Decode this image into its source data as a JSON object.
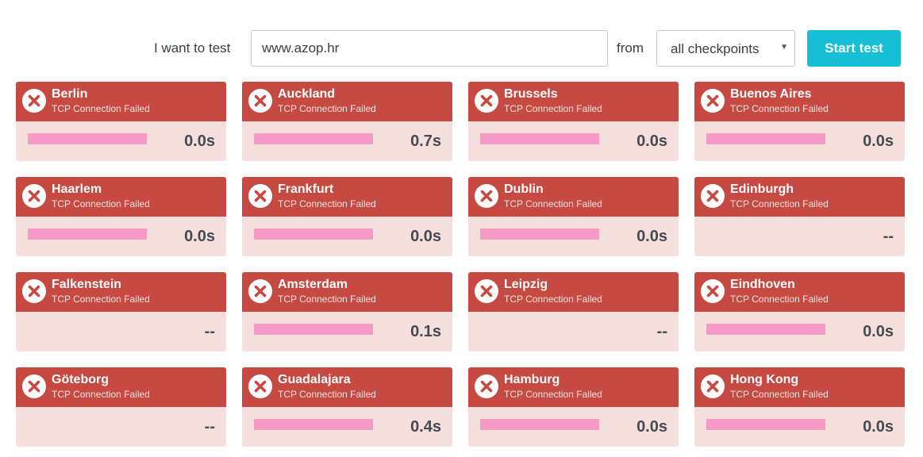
{
  "toolbar": {
    "test_label": "I want to test",
    "url_value": "www.azop.hr",
    "from_label": "from",
    "checkpoint_selected": "all checkpoints",
    "start_label": "Start test"
  },
  "colors": {
    "accent": "#16bfd6",
    "fail_header": "#c64a41",
    "fail_body": "#f5dfdd",
    "bar": "#f49ac4"
  },
  "icons": {
    "fail": "x-circle-icon",
    "dropdown": "caret-down-icon"
  },
  "results": [
    {
      "city": "Berlin",
      "status": "TCP Connection Failed",
      "time": "0.0s",
      "has_bar": true
    },
    {
      "city": "Auckland",
      "status": "TCP Connection Failed",
      "time": "0.7s",
      "has_bar": true
    },
    {
      "city": "Brussels",
      "status": "TCP Connection Failed",
      "time": "0.0s",
      "has_bar": true
    },
    {
      "city": "Buenos Aires",
      "status": "TCP Connection Failed",
      "time": "0.0s",
      "has_bar": true
    },
    {
      "city": "Haarlem",
      "status": "TCP Connection Failed",
      "time": "0.0s",
      "has_bar": true
    },
    {
      "city": "Frankfurt",
      "status": "TCP Connection Failed",
      "time": "0.0s",
      "has_bar": true
    },
    {
      "city": "Dublin",
      "status": "TCP Connection Failed",
      "time": "0.0s",
      "has_bar": true
    },
    {
      "city": "Edinburgh",
      "status": "TCP Connection Failed",
      "time": "--",
      "has_bar": false
    },
    {
      "city": "Falkenstein",
      "status": "TCP Connection Failed",
      "time": "--",
      "has_bar": false
    },
    {
      "city": "Amsterdam",
      "status": "TCP Connection Failed",
      "time": "0.1s",
      "has_bar": true
    },
    {
      "city": "Leipzig",
      "status": "TCP Connection Failed",
      "time": "--",
      "has_bar": false
    },
    {
      "city": "Eindhoven",
      "status": "TCP Connection Failed",
      "time": "0.0s",
      "has_bar": true
    },
    {
      "city": "Göteborg",
      "status": "TCP Connection Failed",
      "time": "--",
      "has_bar": false
    },
    {
      "city": "Guadalajara",
      "status": "TCP Connection Failed",
      "time": "0.4s",
      "has_bar": true
    },
    {
      "city": "Hamburg",
      "status": "TCP Connection Failed",
      "time": "0.0s",
      "has_bar": true
    },
    {
      "city": "Hong Kong",
      "status": "TCP Connection Failed",
      "time": "0.0s",
      "has_bar": true
    }
  ]
}
